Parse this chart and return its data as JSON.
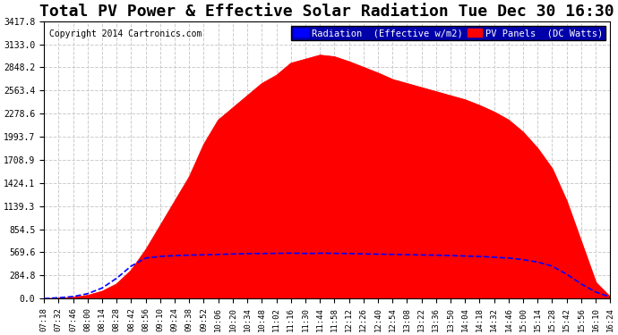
{
  "title": "Total PV Power & Effective Solar Radiation Tue Dec 30 16:30",
  "copyright": "Copyright 2014 Cartronics.com",
  "legend_blue": "Radiation  (Effective w/m2)",
  "legend_red": "PV Panels  (DC Watts)",
  "yticks": [
    0.0,
    284.8,
    569.6,
    854.5,
    1139.3,
    1424.1,
    1708.9,
    1993.7,
    2278.6,
    2563.4,
    2848.2,
    3133.0,
    3417.8
  ],
  "ymax": 3417.8,
  "ymin": 0.0,
  "bg_color": "#ffffff",
  "plot_bg_color": "#ffffff",
  "grid_color": "#cccccc",
  "red_fill_color": "#ff0000",
  "blue_line_color": "#0000ff",
  "title_fontsize": 13,
  "x_display": [
    "07:18",
    "07:32",
    "07:46",
    "08:00",
    "08:14",
    "08:28",
    "08:42",
    "08:56",
    "09:10",
    "09:24",
    "09:38",
    "09:52",
    "10:06",
    "10:20",
    "10:34",
    "10:48",
    "11:02",
    "11:16",
    "11:30",
    "11:44",
    "11:58",
    "12:12",
    "12:26",
    "12:40",
    "12:54",
    "13:08",
    "13:22",
    "13:36",
    "13:50",
    "14:04",
    "14:18",
    "14:32",
    "14:46",
    "15:00",
    "15:14",
    "15:28",
    "15:42",
    "15:56",
    "16:10",
    "16:24"
  ],
  "pv_power": [
    0,
    5,
    15,
    40,
    90,
    180,
    350,
    600,
    900,
    1200,
    1500,
    1900,
    2200,
    2350,
    2500,
    2650,
    2750,
    2900,
    2950,
    3000,
    2980,
    2920,
    2850,
    2780,
    2700,
    2650,
    2600,
    2550,
    2500,
    2450,
    2380,
    2300,
    2200,
    2050,
    1850,
    1600,
    1200,
    700,
    200,
    20
  ],
  "radiation": [
    0,
    10,
    25,
    60,
    130,
    250,
    400,
    500,
    520,
    530,
    535,
    540,
    545,
    550,
    555,
    555,
    558,
    560,
    555,
    560,
    558,
    555,
    550,
    548,
    545,
    540,
    538,
    535,
    530,
    525,
    520,
    510,
    500,
    480,
    450,
    400,
    300,
    180,
    80,
    20
  ]
}
